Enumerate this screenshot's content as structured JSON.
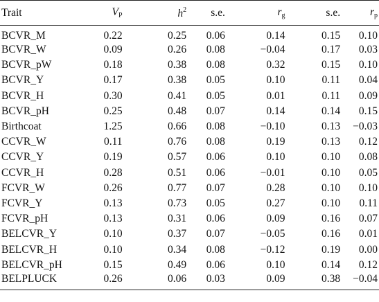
{
  "table": {
    "headers": {
      "trait": "Trait",
      "vp_main": "V",
      "vp_sub": "P",
      "h2_main": "h",
      "h2_sup": "2",
      "se1": "s.e.",
      "rg_main": "r",
      "rg_sub": "g",
      "se2": "s.e.",
      "rp_main": "r",
      "rp_sub": "p"
    },
    "rows": [
      [
        "BCVR_M",
        "0.22",
        "0.25",
        "0.06",
        "0.14",
        "0.15",
        "0.10"
      ],
      [
        "BCVR_W",
        "0.09",
        "0.26",
        "0.08",
        "−0.04",
        "0.17",
        "0.03"
      ],
      [
        "BCVR_pW",
        "0.18",
        "0.38",
        "0.08",
        "0.32",
        "0.15",
        "0.10"
      ],
      [
        "BCVR_Y",
        "0.17",
        "0.38",
        "0.05",
        "0.10",
        "0.11",
        "0.04"
      ],
      [
        "BCVR_H",
        "0.30",
        "0.41",
        "0.05",
        "0.01",
        "0.11",
        "0.09"
      ],
      [
        "BCVR_pH",
        "0.25",
        "0.48",
        "0.07",
        "0.14",
        "0.14",
        "0.15"
      ],
      [
        "Birthcoat",
        "1.25",
        "0.66",
        "0.08",
        "−0.10",
        "0.13",
        "−0.03"
      ],
      [
        "CCVR_W",
        "0.11",
        "0.76",
        "0.08",
        "0.19",
        "0.13",
        "0.12"
      ],
      [
        "CCVR_Y",
        "0.19",
        "0.57",
        "0.06",
        "0.10",
        "0.10",
        "0.08"
      ],
      [
        "CCVR_H",
        "0.28",
        "0.51",
        "0.06",
        "−0.01",
        "0.10",
        "0.05"
      ],
      [
        "FCVR_W",
        "0.26",
        "0.77",
        "0.07",
        "0.28",
        "0.10",
        "0.10"
      ],
      [
        "FCVR_Y",
        "0.13",
        "0.73",
        "0.05",
        "0.27",
        "0.10",
        "0.11"
      ],
      [
        "FCVR_pH",
        "0.13",
        "0.31",
        "0.06",
        "0.09",
        "0.16",
        "0.07"
      ],
      [
        "BELCVR_Y",
        "0.10",
        "0.37",
        "0.07",
        "−0.05",
        "0.16",
        "0.01"
      ],
      [
        "BELCVR_H",
        "0.10",
        "0.34",
        "0.08",
        "−0.12",
        "0.19",
        "0.00"
      ],
      [
        "BELCVR_pH",
        "0.15",
        "0.49",
        "0.06",
        "0.10",
        "0.14",
        "0.12"
      ],
      [
        "BELPLUCK",
        "0.26",
        "0.06",
        "0.03",
        "0.09",
        "0.38",
        "−0.04"
      ]
    ]
  }
}
